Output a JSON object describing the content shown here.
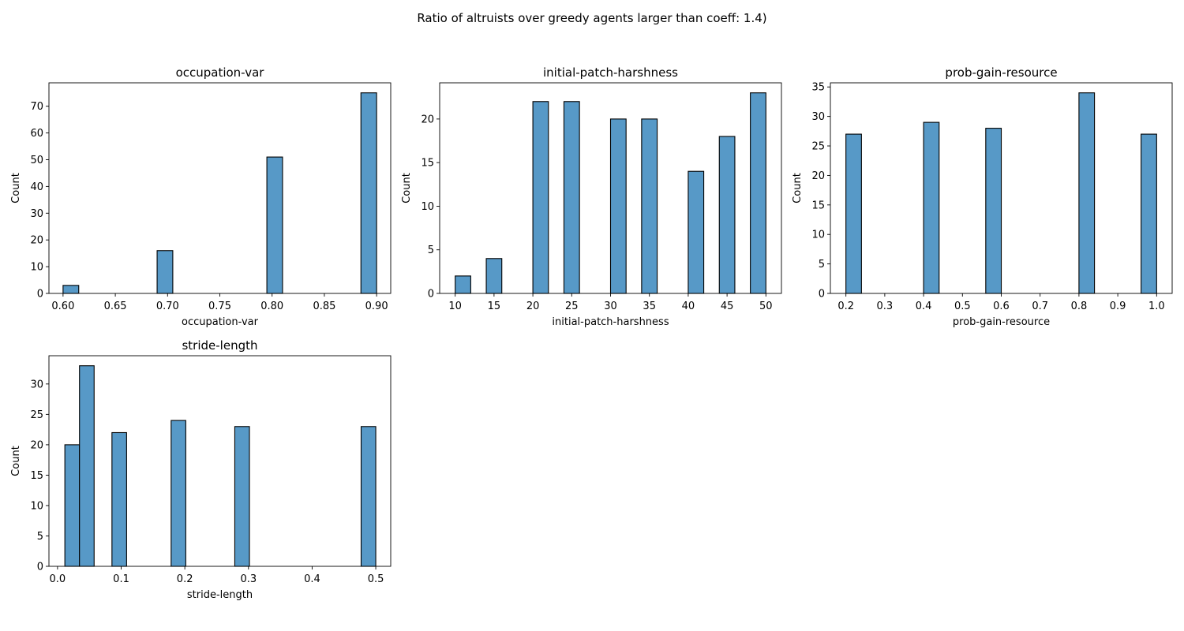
{
  "figure": {
    "suptitle": "Ratio of altruists over greedy agents larger than coeff: 1.4)",
    "bar_fill": "#5799c7",
    "bar_edge": "#000000"
  },
  "chart_data": [
    {
      "type": "bar",
      "title": "occupation-var",
      "xlabel": "occupation-var",
      "ylabel": "Count",
      "xlim": [
        0.5865,
        0.9135
      ],
      "ylim": [
        0,
        78.75
      ],
      "xticks": [
        0.6,
        0.65,
        0.7,
        0.75,
        0.8,
        0.85,
        0.9
      ],
      "xtick_labels": [
        "0.60",
        "0.65",
        "0.70",
        "0.75",
        "0.80",
        "0.85",
        "0.90"
      ],
      "yticks": [
        0,
        10,
        20,
        30,
        40,
        50,
        60,
        70
      ],
      "yticklabels": [
        "0",
        "10",
        "20",
        "30",
        "40",
        "50",
        "60",
        "70"
      ],
      "bins": [
        {
          "x0": 0.6,
          "x1": 0.615,
          "count": 3
        },
        {
          "x0": 0.69,
          "x1": 0.705,
          "count": 16
        },
        {
          "x0": 0.795,
          "x1": 0.81,
          "count": 51
        },
        {
          "x0": 0.885,
          "x1": 0.9,
          "count": 75
        }
      ],
      "grid": false
    },
    {
      "type": "bar",
      "title": "initial-patch-harshness",
      "xlabel": "initial-patch-harshness",
      "ylabel": "Count",
      "xlim": [
        8.0,
        52.0
      ],
      "ylim": [
        0,
        24.15
      ],
      "xticks": [
        10,
        15,
        20,
        25,
        30,
        35,
        40,
        45,
        50
      ],
      "xtick_labels": [
        "10",
        "15",
        "20",
        "25",
        "30",
        "35",
        "40",
        "45",
        "50"
      ],
      "yticks": [
        0,
        5,
        10,
        15,
        20
      ],
      "yticklabels": [
        "0",
        "5",
        "10",
        "15",
        "20"
      ],
      "bins": [
        {
          "x0": 10.0,
          "x1": 12.0,
          "count": 2
        },
        {
          "x0": 14.0,
          "x1": 16.0,
          "count": 4
        },
        {
          "x0": 20.0,
          "x1": 22.0,
          "count": 22
        },
        {
          "x0": 24.0,
          "x1": 26.0,
          "count": 22
        },
        {
          "x0": 30.0,
          "x1": 32.0,
          "count": 20
        },
        {
          "x0": 34.0,
          "x1": 36.0,
          "count": 20
        },
        {
          "x0": 40.0,
          "x1": 42.0,
          "count": 14
        },
        {
          "x0": 44.0,
          "x1": 46.0,
          "count": 18
        },
        {
          "x0": 48.0,
          "x1": 50.0,
          "count": 23
        }
      ],
      "grid": false
    },
    {
      "type": "bar",
      "title": "prob-gain-resource",
      "xlabel": "prob-gain-resource",
      "ylabel": "Count",
      "xlim": [
        0.16,
        1.04
      ],
      "ylim": [
        0,
        35.7
      ],
      "xticks": [
        0.2,
        0.3,
        0.4,
        0.5,
        0.6,
        0.7,
        0.8,
        0.9,
        1.0
      ],
      "xtick_labels": [
        "0.2",
        "0.3",
        "0.4",
        "0.5",
        "0.6",
        "0.7",
        "0.8",
        "0.9",
        "1.0"
      ],
      "yticks": [
        0,
        5,
        10,
        15,
        20,
        25,
        30,
        35
      ],
      "yticklabels": [
        "0",
        "5",
        "10",
        "15",
        "20",
        "25",
        "30",
        "35"
      ],
      "bins": [
        {
          "x0": 0.2,
          "x1": 0.24,
          "count": 27
        },
        {
          "x0": 0.4,
          "x1": 0.44,
          "count": 29
        },
        {
          "x0": 0.56,
          "x1": 0.6,
          "count": 28
        },
        {
          "x0": 0.8,
          "x1": 0.84,
          "count": 34
        },
        {
          "x0": 0.96,
          "x1": 1.0,
          "count": 27
        }
      ],
      "grid": false
    },
    {
      "type": "bar",
      "title": "stride-length",
      "xlabel": "stride-length",
      "ylabel": "Count",
      "xlim": [
        -0.0135,
        0.5235
      ],
      "ylim": [
        0,
        34.65
      ],
      "xticks": [
        0.0,
        0.1,
        0.2,
        0.3,
        0.4,
        0.5
      ],
      "xtick_labels": [
        "0.0",
        "0.1",
        "0.2",
        "0.3",
        "0.4",
        "0.5"
      ],
      "yticks": [
        0,
        5,
        10,
        15,
        20,
        25,
        30
      ],
      "yticklabels": [
        "0",
        "5",
        "10",
        "15",
        "20",
        "25",
        "30"
      ],
      "bins": [
        {
          "x0": 0.0115,
          "x1": 0.0345,
          "count": 20
        },
        {
          "x0": 0.0345,
          "x1": 0.0575,
          "count": 33
        },
        {
          "x0": 0.0855,
          "x1": 0.1085,
          "count": 22
        },
        {
          "x0": 0.1785,
          "x1": 0.2015,
          "count": 24
        },
        {
          "x0": 0.2785,
          "x1": 0.3015,
          "count": 23
        },
        {
          "x0": 0.477,
          "x1": 0.5,
          "count": 23
        }
      ],
      "grid": false
    }
  ]
}
